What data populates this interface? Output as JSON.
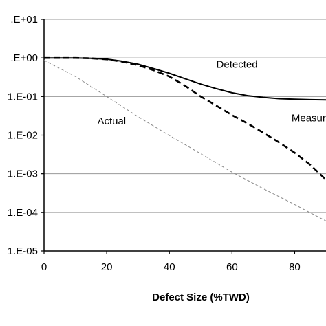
{
  "chart_data": {
    "type": "line",
    "title": "",
    "xlabel": "Defect Size (%TWD)",
    "ylabel": "",
    "xlim": [
      0,
      90
    ],
    "ylim_log10": [
      -5,
      1
    ],
    "y_scale": "log",
    "grid": "horizontal",
    "x_ticks": [
      "0",
      "20",
      "40",
      "60",
      "80"
    ],
    "x_tick_values": [
      0,
      20,
      40,
      60,
      80
    ],
    "y_ticks": [
      ".E+01",
      ".E+00",
      "1.E-01",
      "1.E-02",
      "1.E-03",
      "1.E-04",
      "1.E-05"
    ],
    "y_tick_values": [
      10,
      1,
      0.1,
      0.01,
      0.001,
      0.0001,
      1e-05
    ],
    "series": [
      {
        "name": "Detected",
        "style": "solid",
        "color": "#000000",
        "x": [
          0,
          10,
          15,
          20,
          25,
          30,
          35,
          40,
          45,
          50,
          55,
          60,
          65,
          70,
          75,
          80,
          85,
          90
        ],
        "y": [
          1.0,
          1.0,
          0.98,
          0.93,
          0.82,
          0.69,
          0.53,
          0.4,
          0.29,
          0.21,
          0.16,
          0.125,
          0.105,
          0.095,
          0.088,
          0.085,
          0.083,
          0.082
        ]
      },
      {
        "name": "Measured",
        "style": "dashed",
        "color": "#000000",
        "x": [
          0,
          10,
          15,
          20,
          25,
          30,
          35,
          40,
          45,
          50,
          55,
          60,
          65,
          70,
          75,
          80,
          85,
          90
        ],
        "y": [
          1.0,
          1.0,
          0.98,
          0.92,
          0.8,
          0.65,
          0.48,
          0.33,
          0.19,
          0.1,
          0.058,
          0.033,
          0.02,
          0.0115,
          0.0065,
          0.0035,
          0.0017,
          0.0007
        ]
      },
      {
        "name": "Actual",
        "style": "dashed-thin",
        "color": "#888888",
        "x": [
          0,
          10,
          20,
          30,
          40,
          50,
          60,
          70,
          80,
          90
        ],
        "y": [
          0.87,
          0.33,
          0.1,
          0.03,
          0.0098,
          0.0033,
          0.0011,
          0.00041,
          0.00016,
          6e-05
        ]
      }
    ],
    "annotations": [
      {
        "text": "Detected",
        "x": 55,
        "y": 0.55
      },
      {
        "text": "Measured",
        "x": 79,
        "y": 0.0225
      },
      {
        "text": "Actual",
        "x": 17,
        "y": 0.019
      }
    ]
  }
}
